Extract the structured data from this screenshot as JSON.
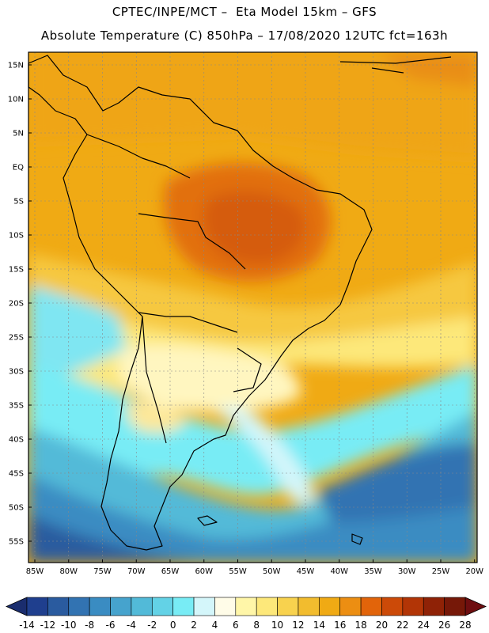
{
  "header": {
    "title_line1": "CPTEC/INPE/MCT –  Eta Model 15km – GFS",
    "title_line2": "Absolute Temperature (C) 850hPa – 17/08/2020 12UTC fct=163h"
  },
  "map": {
    "lat_ticks": [
      "15N",
      "10N",
      "5N",
      "EQ",
      "5S",
      "10S",
      "15S",
      "20S",
      "25S",
      "30S",
      "35S",
      "40S",
      "45S",
      "50S",
      "55S"
    ],
    "lon_ticks": [
      "85W",
      "80W",
      "75W",
      "70W",
      "65W",
      "60W",
      "55W",
      "50W",
      "45W",
      "40W",
      "35W",
      "30W",
      "25W",
      "20W"
    ]
  },
  "colorbar": {
    "labels": [
      "-14",
      "-12",
      "-10",
      "-8",
      "-6",
      "-4",
      "-2",
      "0",
      "2",
      "4",
      "6",
      "8",
      "10",
      "12",
      "14",
      "16",
      "18",
      "20",
      "22",
      "24",
      "26",
      "28"
    ],
    "colors": [
      "#1f3f8e",
      "#2a5b9f",
      "#3273b2",
      "#3a8cc2",
      "#46a3cd",
      "#52bad8",
      "#63d2e6",
      "#78ecf5",
      "#d4f6fa",
      "#fffce8",
      "#fff6a8",
      "#fde87a",
      "#f8d24e",
      "#f2bc2e",
      "#f0aa14",
      "#ec8e12",
      "#e2640a",
      "#cc4a08",
      "#b23506",
      "#8f2206",
      "#761808"
    ],
    "low_color": "#1a2d6e",
    "high_color": "#6e0e10"
  }
}
